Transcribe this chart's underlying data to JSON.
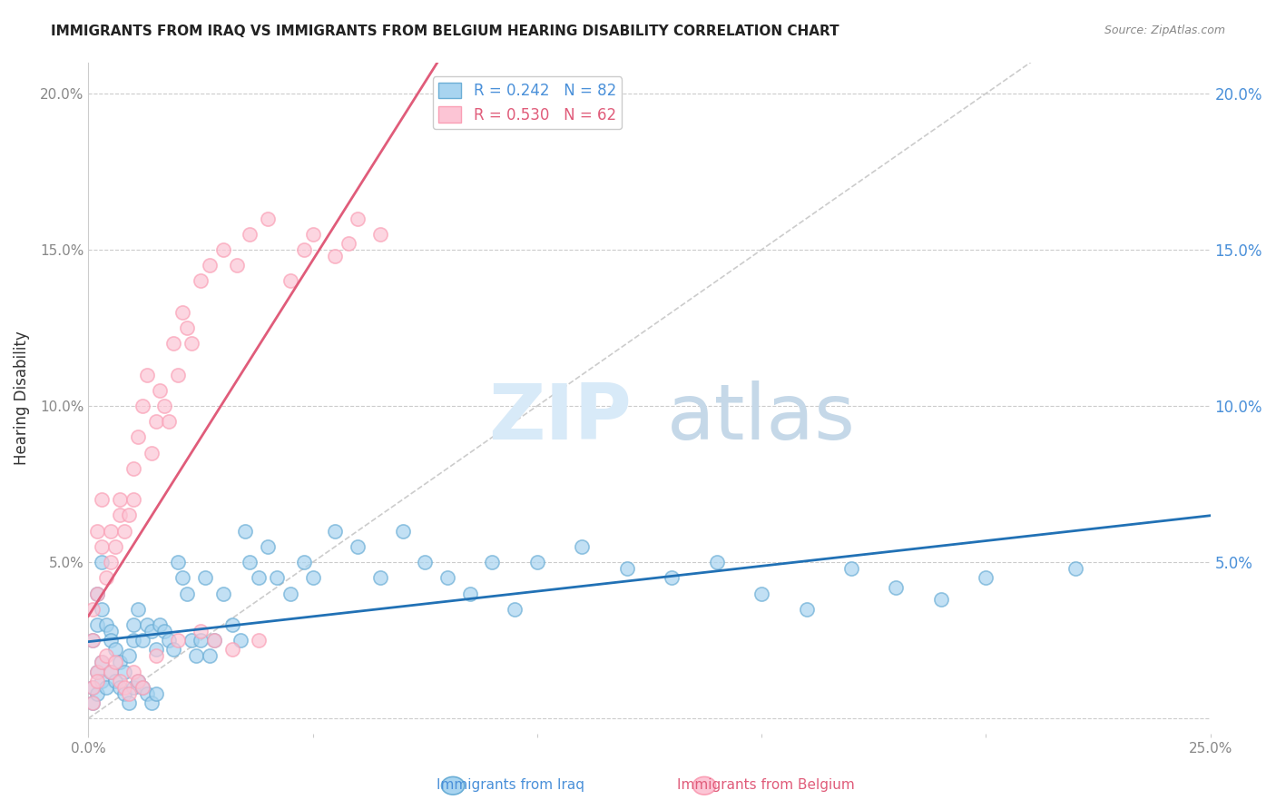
{
  "title": "IMMIGRANTS FROM IRAQ VS IMMIGRANTS FROM BELGIUM HEARING DISABILITY CORRELATION CHART",
  "source": "Source: ZipAtlas.com",
  "ylabel": "Hearing Disability",
  "xlim": [
    0.0,
    0.25
  ],
  "ylim": [
    -0.005,
    0.21
  ],
  "yticks": [
    0.0,
    0.05,
    0.1,
    0.15,
    0.2
  ],
  "ytick_labels": [
    "",
    "5.0%",
    "10.0%",
    "15.0%",
    "20.0%"
  ],
  "iraq_R": 0.242,
  "iraq_N": 82,
  "belgium_R": 0.53,
  "belgium_N": 62,
  "iraq_color": "#6baed6",
  "iraq_color_fill": "#a8d4f0",
  "belgium_color": "#fa9fb5",
  "belgium_color_fill": "#fcc5d5",
  "trendline_iraq_color": "#2171b5",
  "trendline_belgium_color": "#e05c7a",
  "diagonal_color": "#cccccc",
  "iraq_x": [
    0.001,
    0.002,
    0.002,
    0.003,
    0.003,
    0.004,
    0.005,
    0.005,
    0.006,
    0.007,
    0.008,
    0.009,
    0.01,
    0.01,
    0.011,
    0.012,
    0.013,
    0.014,
    0.015,
    0.016,
    0.017,
    0.018,
    0.019,
    0.02,
    0.021,
    0.022,
    0.023,
    0.024,
    0.025,
    0.026,
    0.027,
    0.028,
    0.03,
    0.032,
    0.034,
    0.036,
    0.038,
    0.04,
    0.042,
    0.045,
    0.048,
    0.05,
    0.055,
    0.06,
    0.065,
    0.07,
    0.075,
    0.08,
    0.085,
    0.09,
    0.095,
    0.1,
    0.11,
    0.12,
    0.13,
    0.14,
    0.15,
    0.16,
    0.17,
    0.18,
    0.19,
    0.2,
    0.001,
    0.001,
    0.002,
    0.002,
    0.003,
    0.003,
    0.004,
    0.005,
    0.006,
    0.007,
    0.008,
    0.009,
    0.01,
    0.011,
    0.012,
    0.013,
    0.014,
    0.015,
    0.22,
    0.035
  ],
  "iraq_y": [
    0.025,
    0.03,
    0.04,
    0.05,
    0.035,
    0.03,
    0.028,
    0.025,
    0.022,
    0.018,
    0.015,
    0.02,
    0.025,
    0.03,
    0.035,
    0.025,
    0.03,
    0.028,
    0.022,
    0.03,
    0.028,
    0.025,
    0.022,
    0.05,
    0.045,
    0.04,
    0.025,
    0.02,
    0.025,
    0.045,
    0.02,
    0.025,
    0.04,
    0.03,
    0.025,
    0.05,
    0.045,
    0.055,
    0.045,
    0.04,
    0.05,
    0.045,
    0.06,
    0.055,
    0.045,
    0.06,
    0.05,
    0.045,
    0.04,
    0.05,
    0.035,
    0.05,
    0.055,
    0.048,
    0.045,
    0.05,
    0.04,
    0.035,
    0.048,
    0.042,
    0.038,
    0.045,
    0.005,
    0.01,
    0.008,
    0.015,
    0.012,
    0.018,
    0.01,
    0.015,
    0.012,
    0.01,
    0.008,
    0.005,
    0.01,
    0.012,
    0.01,
    0.008,
    0.005,
    0.008,
    0.048,
    0.06
  ],
  "belgium_x": [
    0.001,
    0.001,
    0.002,
    0.002,
    0.003,
    0.003,
    0.004,
    0.005,
    0.005,
    0.006,
    0.007,
    0.007,
    0.008,
    0.009,
    0.01,
    0.01,
    0.011,
    0.012,
    0.013,
    0.014,
    0.015,
    0.016,
    0.017,
    0.018,
    0.019,
    0.02,
    0.021,
    0.022,
    0.023,
    0.025,
    0.027,
    0.03,
    0.033,
    0.036,
    0.04,
    0.045,
    0.048,
    0.05,
    0.055,
    0.058,
    0.06,
    0.065,
    0.001,
    0.001,
    0.002,
    0.002,
    0.003,
    0.004,
    0.005,
    0.006,
    0.007,
    0.008,
    0.009,
    0.01,
    0.011,
    0.012,
    0.015,
    0.02,
    0.025,
    0.028,
    0.032,
    0.038
  ],
  "belgium_y": [
    0.025,
    0.035,
    0.04,
    0.06,
    0.07,
    0.055,
    0.045,
    0.06,
    0.05,
    0.055,
    0.07,
    0.065,
    0.06,
    0.065,
    0.08,
    0.07,
    0.09,
    0.1,
    0.11,
    0.085,
    0.095,
    0.105,
    0.1,
    0.095,
    0.12,
    0.11,
    0.13,
    0.125,
    0.12,
    0.14,
    0.145,
    0.15,
    0.145,
    0.155,
    0.16,
    0.14,
    0.15,
    0.155,
    0.148,
    0.152,
    0.16,
    0.155,
    0.01,
    0.005,
    0.015,
    0.012,
    0.018,
    0.02,
    0.015,
    0.018,
    0.012,
    0.01,
    0.008,
    0.015,
    0.012,
    0.01,
    0.02,
    0.025,
    0.028,
    0.025,
    0.022,
    0.025
  ],
  "figsize": [
    14.06,
    8.92
  ],
  "dpi": 100
}
